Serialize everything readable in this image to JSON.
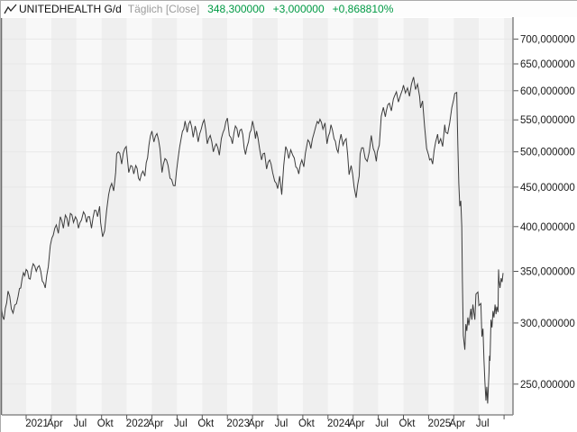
{
  "header": {
    "icon": "line-chart-icon",
    "symbol": "UNITEDHEALTH G/d",
    "period": "Täglich [Close]",
    "last": "348,300000",
    "change": "+3,000000",
    "change_pct": "+0,868810%"
  },
  "colors": {
    "up_green": "#009a44",
    "price_line": "#3c3c3c",
    "grid_line": "#e7e7e7",
    "stripe_gray": "#efefef",
    "stripe_light": "#f8f8f8",
    "axis_line": "#8a8a8a",
    "tick_text": "#1a1a1a",
    "muted_text": "#9b9b9b"
  },
  "y_axis": {
    "currency": "$",
    "ticks": [
      {
        "v": 700,
        "label": "700,000000"
      },
      {
        "v": 650,
        "label": "650,000000"
      },
      {
        "v": 600,
        "label": "600,000000"
      },
      {
        "v": 550,
        "label": "550,000000"
      },
      {
        "v": 500,
        "label": "500,000000"
      },
      {
        "v": 450,
        "label": "450,000000"
      },
      {
        "v": 400,
        "label": "400,000000"
      },
      {
        "v": 350,
        "label": "350,000000"
      },
      {
        "v": 300,
        "label": "300,000000"
      },
      {
        "v": 250,
        "label": "250,000000"
      }
    ]
  },
  "x_axis": {
    "ticks": [
      {
        "t": 2021.0,
        "label": "2021"
      },
      {
        "t": 2021.25,
        "label": "Apr"
      },
      {
        "t": 2021.5,
        "label": "Jul"
      },
      {
        "t": 2021.75,
        "label": "Okt"
      },
      {
        "t": 2022.0,
        "label": "2022"
      },
      {
        "t": 2022.25,
        "label": "Apr"
      },
      {
        "t": 2022.5,
        "label": "Jul"
      },
      {
        "t": 2022.75,
        "label": "Okt"
      },
      {
        "t": 2023.0,
        "label": "2023"
      },
      {
        "t": 2023.25,
        "label": "Apr"
      },
      {
        "t": 2023.5,
        "label": "Jul"
      },
      {
        "t": 2023.75,
        "label": "Okt"
      },
      {
        "t": 2024.0,
        "label": "2024"
      },
      {
        "t": 2024.25,
        "label": "Apr"
      },
      {
        "t": 2024.5,
        "label": "Jul"
      },
      {
        "t": 2024.75,
        "label": "Okt"
      },
      {
        "t": 2025.0,
        "label": "2025"
      },
      {
        "t": 2025.25,
        "label": "Apr"
      },
      {
        "t": 2025.5,
        "label": "Jul"
      },
      {
        "t": 2025.75,
        "label": ""
      }
    ]
  },
  "chart_data": {
    "type": "line",
    "title": "UNITEDHEALTH G/d",
    "subtitle": "Täglich [Close]",
    "ylabel": "$",
    "log_scale": true,
    "grid": true,
    "x_range": [
      2020.74,
      2025.84
    ],
    "ylim": [
      236,
      700
    ],
    "last_close": 348.3,
    "change": 3.0,
    "change_pct": 0.86881,
    "series": [
      {
        "name": "UNITEDHEALTH Close",
        "points": [
          [
            2020.74,
            315
          ],
          [
            2020.78,
            303
          ],
          [
            2020.82,
            330
          ],
          [
            2020.87,
            309
          ],
          [
            2020.92,
            325
          ],
          [
            2020.96,
            342
          ],
          [
            2021.0,
            352
          ],
          [
            2021.04,
            342
          ],
          [
            2021.07,
            358
          ],
          [
            2021.1,
            350
          ],
          [
            2021.13,
            356
          ],
          [
            2021.16,
            340
          ],
          [
            2021.19,
            333
          ],
          [
            2021.22,
            355
          ],
          [
            2021.24,
            378
          ],
          [
            2021.27,
            390
          ],
          [
            2021.3,
            402
          ],
          [
            2021.32,
            392
          ],
          [
            2021.34,
            412
          ],
          [
            2021.37,
            398
          ],
          [
            2021.39,
            414
          ],
          [
            2021.42,
            400
          ],
          [
            2021.44,
            416
          ],
          [
            2021.47,
            405
          ],
          [
            2021.49,
            412
          ],
          [
            2021.52,
            398
          ],
          [
            2021.55,
            408
          ],
          [
            2021.57,
            418
          ],
          [
            2021.6,
            405
          ],
          [
            2021.63,
            412
          ],
          [
            2021.65,
            398
          ],
          [
            2021.68,
            420
          ],
          [
            2021.71,
            412
          ],
          [
            2021.73,
            425
          ],
          [
            2021.74,
            405
          ],
          [
            2021.76,
            388
          ],
          [
            2021.78,
            395
          ],
          [
            2021.8,
            420
          ],
          [
            2021.82,
            440
          ],
          [
            2021.85,
            455
          ],
          [
            2021.87,
            445
          ],
          [
            2021.89,
            470
          ],
          [
            2021.9,
            497
          ],
          [
            2021.93,
            498
          ],
          [
            2021.95,
            482
          ],
          [
            2021.98,
            505
          ],
          [
            2021.995,
            508
          ],
          [
            2022.02,
            470
          ],
          [
            2022.04,
            480
          ],
          [
            2022.07,
            468
          ],
          [
            2022.09,
            480
          ],
          [
            2022.13,
            459
          ],
          [
            2022.16,
            472
          ],
          [
            2022.18,
            465
          ],
          [
            2022.22,
            510
          ],
          [
            2022.25,
            532
          ],
          [
            2022.27,
            515
          ],
          [
            2022.3,
            528
          ],
          [
            2022.33,
            505
          ],
          [
            2022.35,
            470
          ],
          [
            2022.38,
            490
          ],
          [
            2022.41,
            480
          ],
          [
            2022.43,
            462
          ],
          [
            2022.48,
            452
          ],
          [
            2022.51,
            490
          ],
          [
            2022.54,
            520
          ],
          [
            2022.58,
            548
          ],
          [
            2022.6,
            530
          ],
          [
            2022.63,
            548
          ],
          [
            2022.66,
            522
          ],
          [
            2022.68,
            540
          ],
          [
            2022.71,
            515
          ],
          [
            2022.74,
            535
          ],
          [
            2022.77,
            550
          ],
          [
            2022.8,
            512
          ],
          [
            2022.83,
            525
          ],
          [
            2022.86,
            500
          ],
          [
            2022.89,
            512
          ],
          [
            2022.92,
            495
          ],
          [
            2022.94,
            520
          ],
          [
            2022.97,
            535
          ],
          [
            2023.0,
            553
          ],
          [
            2023.02,
            525
          ],
          [
            2023.05,
            512
          ],
          [
            2023.08,
            540
          ],
          [
            2023.11,
            522
          ],
          [
            2023.14,
            535
          ],
          [
            2023.18,
            496
          ],
          [
            2023.21,
            515
          ],
          [
            2023.25,
            548
          ],
          [
            2023.28,
            520
          ],
          [
            2023.29,
            532
          ],
          [
            2023.32,
            505
          ],
          [
            2023.34,
            488
          ],
          [
            2023.37,
            498
          ],
          [
            2023.39,
            475
          ],
          [
            2023.42,
            488
          ],
          [
            2023.45,
            470
          ],
          [
            2023.47,
            458
          ],
          [
            2023.5,
            448
          ],
          [
            2023.52,
            465
          ],
          [
            2023.54,
            440
          ],
          [
            2023.56,
            480
          ],
          [
            2023.58,
            508
          ],
          [
            2023.61,
            490
          ],
          [
            2023.63,
            503
          ],
          [
            2023.65,
            495
          ],
          [
            2023.68,
            478
          ],
          [
            2023.71,
            468
          ],
          [
            2023.74,
            488
          ],
          [
            2023.76,
            478
          ],
          [
            2023.79,
            510
          ],
          [
            2023.8,
            518
          ],
          [
            2023.83,
            505
          ],
          [
            2023.86,
            528
          ],
          [
            2023.88,
            540
          ],
          [
            2023.92,
            551
          ],
          [
            2023.95,
            535
          ],
          [
            2023.97,
            545
          ],
          [
            2023.99,
            512
          ],
          [
            2024.03,
            542
          ],
          [
            2024.06,
            520
          ],
          [
            2024.1,
            499
          ],
          [
            2024.13,
            527
          ],
          [
            2024.15,
            510
          ],
          [
            2024.18,
            520
          ],
          [
            2024.21,
            467
          ],
          [
            2024.23,
            480
          ],
          [
            2024.26,
            450
          ],
          [
            2024.28,
            436
          ],
          [
            2024.31,
            465
          ],
          [
            2024.32,
            497
          ],
          [
            2024.35,
            506
          ],
          [
            2024.37,
            490
          ],
          [
            2024.39,
            486
          ],
          [
            2024.41,
            500
          ],
          [
            2024.43,
            525
          ],
          [
            2024.45,
            505
          ],
          [
            2024.48,
            486
          ],
          [
            2024.49,
            500
          ],
          [
            2024.51,
            510
          ],
          [
            2024.53,
            556
          ],
          [
            2024.55,
            571
          ],
          [
            2024.57,
            555
          ],
          [
            2024.58,
            565
          ],
          [
            2024.61,
            578
          ],
          [
            2024.63,
            565
          ],
          [
            2024.65,
            585
          ],
          [
            2024.66,
            590
          ],
          [
            2024.68,
            598
          ],
          [
            2024.7,
            580
          ],
          [
            2024.72,
            592
          ],
          [
            2024.74,
            602
          ],
          [
            2024.75,
            610
          ],
          [
            2024.77,
            596
          ],
          [
            2024.79,
            605
          ],
          [
            2024.81,
            590
          ],
          [
            2024.83,
            612
          ],
          [
            2024.85,
            625
          ],
          [
            2024.87,
            602
          ],
          [
            2024.89,
            612
          ],
          [
            2024.91,
            590
          ],
          [
            2024.92,
            570
          ],
          [
            2024.94,
            582
          ],
          [
            2024.96,
            540
          ],
          [
            2024.98,
            505
          ],
          [
            2025.0,
            495
          ],
          [
            2025.01,
            488
          ],
          [
            2025.04,
            482
          ],
          [
            2025.07,
            515
          ],
          [
            2025.09,
            527
          ],
          [
            2025.1,
            512
          ],
          [
            2025.12,
            520
          ],
          [
            2025.14,
            508
          ],
          [
            2025.16,
            542
          ],
          [
            2025.17,
            530
          ],
          [
            2025.19,
            528
          ],
          [
            2025.21,
            545
          ],
          [
            2025.23,
            570
          ],
          [
            2025.25,
            585
          ],
          [
            2025.26,
            595
          ],
          [
            2025.28,
            597
          ],
          [
            2025.29,
            512
          ],
          [
            2025.3,
            455
          ],
          [
            2025.31,
            425
          ],
          [
            2025.32,
            432
          ],
          [
            2025.33,
            400
          ],
          [
            2025.336,
            340
          ],
          [
            2025.345,
            289
          ],
          [
            2025.36,
            277
          ],
          [
            2025.37,
            299
          ],
          [
            2025.38,
            293
          ],
          [
            2025.39,
            305
          ],
          [
            2025.4,
            298
          ],
          [
            2025.42,
            313
          ],
          [
            2025.43,
            303
          ],
          [
            2025.44,
            317
          ],
          [
            2025.46,
            303
          ],
          [
            2025.47,
            327
          ],
          [
            2025.49,
            329
          ],
          [
            2025.5,
            316
          ],
          [
            2025.52,
            318
          ],
          [
            2025.53,
            288
          ],
          [
            2025.54,
            295
          ],
          [
            2025.55,
            269
          ],
          [
            2025.56,
            251
          ],
          [
            2025.57,
            238
          ],
          [
            2025.578,
            248
          ],
          [
            2025.587,
            236
          ],
          [
            2025.6,
            259
          ],
          [
            2025.605,
            272
          ],
          [
            2025.61,
            268
          ],
          [
            2025.62,
            303
          ],
          [
            2025.63,
            296
          ],
          [
            2025.64,
            311
          ],
          [
            2025.65,
            305
          ],
          [
            2025.66,
            317
          ],
          [
            2025.67,
            308
          ],
          [
            2025.677,
            315
          ],
          [
            2025.69,
            310
          ],
          [
            2025.695,
            352
          ],
          [
            2025.7,
            341
          ],
          [
            2025.71,
            333
          ],
          [
            2025.72,
            343
          ],
          [
            2025.73,
            339
          ],
          [
            2025.74,
            348.3
          ]
        ]
      }
    ]
  }
}
